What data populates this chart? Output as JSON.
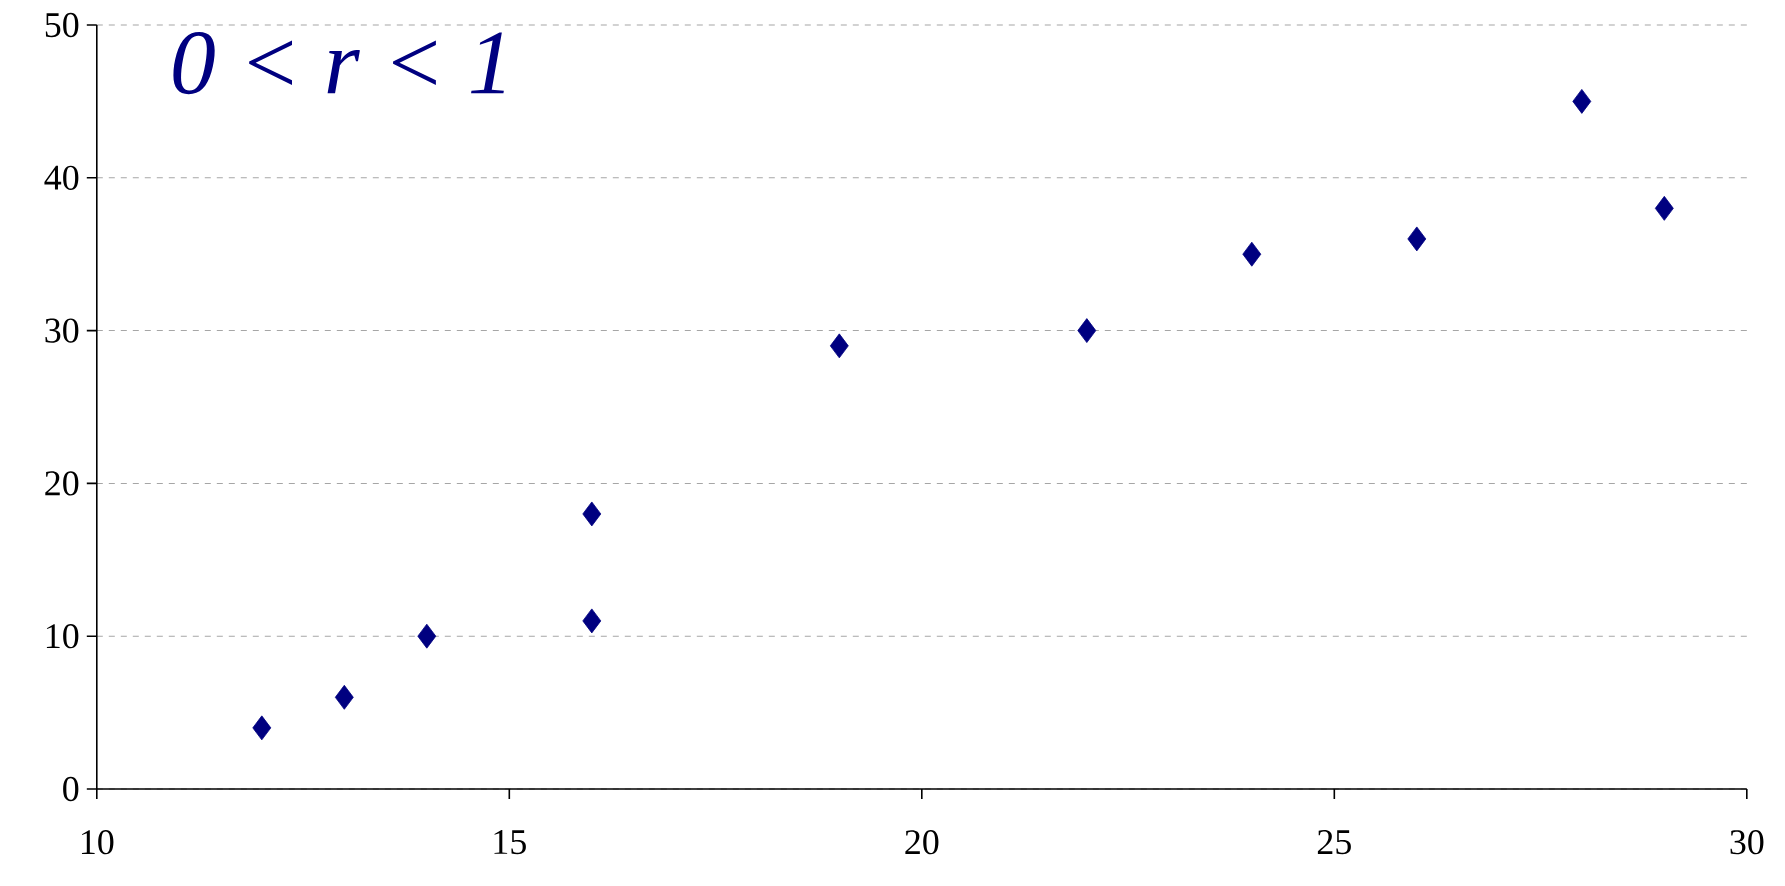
{
  "chart_data": {
    "type": "scatter",
    "x": [
      12,
      13,
      14,
      16,
      16,
      19,
      22,
      24,
      26,
      28,
      29
    ],
    "values": [
      4,
      6,
      10,
      18,
      11,
      29,
      30,
      35,
      36,
      45,
      38
    ],
    "color": "#000080",
    "marker": "diamond",
    "xlim": [
      10,
      30
    ],
    "xticks": [
      10,
      15,
      20,
      25,
      30
    ],
    "ylim": [
      0,
      50
    ],
    "yticks": [
      0,
      10,
      20,
      30,
      40,
      50
    ],
    "grid": "y",
    "annotations": [
      "0 < r < 1"
    ]
  }
}
